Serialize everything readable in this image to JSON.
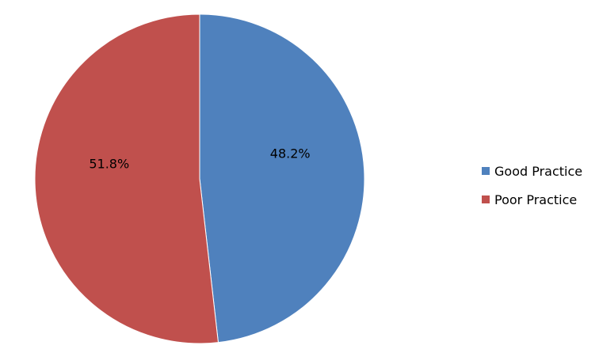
{
  "chart_data": {
    "type": "pie",
    "categories": [
      "Good Practice",
      "Poor Practice"
    ],
    "values": [
      48.2,
      51.8
    ],
    "data_labels": [
      "48.2%",
      "51.8%"
    ],
    "colors": [
      "#4F81BD",
      "#C0504D"
    ],
    "legend_position": "right",
    "start_angle": "top, clockwise"
  }
}
